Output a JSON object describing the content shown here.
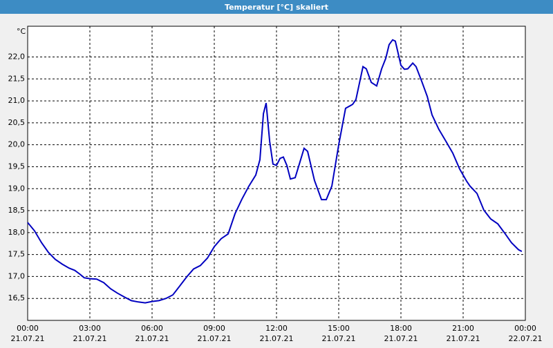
{
  "chart_data": {
    "type": "line",
    "title": "Temperatur [°C] skaliert",
    "ylabel": "°C",
    "x": [
      0,
      0.33,
      0.67,
      1,
      1.33,
      1.67,
      2,
      2.27,
      2.5,
      2.73,
      3,
      3.33,
      3.67,
      4,
      4.33,
      4.67,
      5,
      5.33,
      5.67,
      6,
      6.33,
      6.67,
      7,
      7.33,
      7.67,
      8,
      8.33,
      8.67,
      9,
      9.33,
      9.67,
      10,
      10.33,
      10.67,
      11,
      11.2,
      11.37,
      11.5,
      11.67,
      11.83,
      12,
      12.17,
      12.33,
      12.5,
      12.67,
      12.9,
      13.1,
      13.33,
      13.5,
      13.83,
      14.17,
      14.4,
      14.67,
      15,
      15.33,
      15.67,
      15.83,
      16.17,
      16.33,
      16.57,
      16.83,
      17.07,
      17.27,
      17.43,
      17.6,
      17.73,
      18,
      18.17,
      18.33,
      18.57,
      18.73,
      19,
      19.27,
      19.5,
      19.83,
      20.17,
      20.5,
      20.83,
      21.17,
      21.33,
      21.67,
      22,
      22.33,
      22.67,
      23,
      23.33,
      23.67,
      23.83
    ],
    "series": [
      {
        "color": "#0000c0",
        "values": [
          18.23,
          18.04,
          17.77,
          17.55,
          17.39,
          17.28,
          17.19,
          17.14,
          17.06,
          16.97,
          16.95,
          16.94,
          16.86,
          16.72,
          16.62,
          16.53,
          16.45,
          16.42,
          16.4,
          16.43,
          16.45,
          16.5,
          16.58,
          16.78,
          16.99,
          17.17,
          17.25,
          17.42,
          17.68,
          17.86,
          17.97,
          18.43,
          18.76,
          19.06,
          19.31,
          19.66,
          20.71,
          20.95,
          20.08,
          19.56,
          19.53,
          19.69,
          19.72,
          19.53,
          19.22,
          19.25,
          19.56,
          19.92,
          19.85,
          19.19,
          18.75,
          18.75,
          19.06,
          20.0,
          20.83,
          20.92,
          21.03,
          21.78,
          21.73,
          21.42,
          21.34,
          21.73,
          21.97,
          22.28,
          22.39,
          22.36,
          21.81,
          21.72,
          21.73,
          21.86,
          21.78,
          21.45,
          21.1,
          20.68,
          20.35,
          20.08,
          19.81,
          19.45,
          19.17,
          19.06,
          18.89,
          18.51,
          18.31,
          18.2,
          17.99,
          17.77,
          17.61,
          17.57
        ]
      }
    ],
    "xlim": [
      0,
      24
    ],
    "xticks": [
      {
        "value": 0,
        "label": "00:00"
      },
      {
        "value": 3,
        "label": "03:00"
      },
      {
        "value": 6,
        "label": "06:00"
      },
      {
        "value": 9,
        "label": "09:00"
      },
      {
        "value": 12,
        "label": "12:00"
      },
      {
        "value": 15,
        "label": "15:00"
      },
      {
        "value": 18,
        "label": "18:00"
      },
      {
        "value": 21,
        "label": "21:00"
      },
      {
        "value": 24,
        "label": "00:00"
      }
    ],
    "xtick_dates": [
      "21.07.21",
      "21.07.21",
      "21.07.21",
      "21.07.21",
      "21.07.21",
      "21.07.21",
      "21.07.21",
      "21.07.21",
      "22.07.21"
    ],
    "ylim": [
      16.0,
      22.7
    ],
    "yticks": [
      {
        "value": 16.5,
        "label": "16,5"
      },
      {
        "value": 17,
        "label": "17,0"
      },
      {
        "value": 17.5,
        "label": "17,5"
      },
      {
        "value": 18,
        "label": "18,0"
      },
      {
        "value": 18.5,
        "label": "18,5"
      },
      {
        "value": 19,
        "label": "19,0"
      },
      {
        "value": 19.5,
        "label": "19,5"
      },
      {
        "value": 20,
        "label": "20,0"
      },
      {
        "value": 20.5,
        "label": "20,5"
      },
      {
        "value": 21,
        "label": "21,0"
      },
      {
        "value": 21.5,
        "label": "21,5"
      },
      {
        "value": 22,
        "label": "22,0"
      }
    ],
    "grid": true
  }
}
